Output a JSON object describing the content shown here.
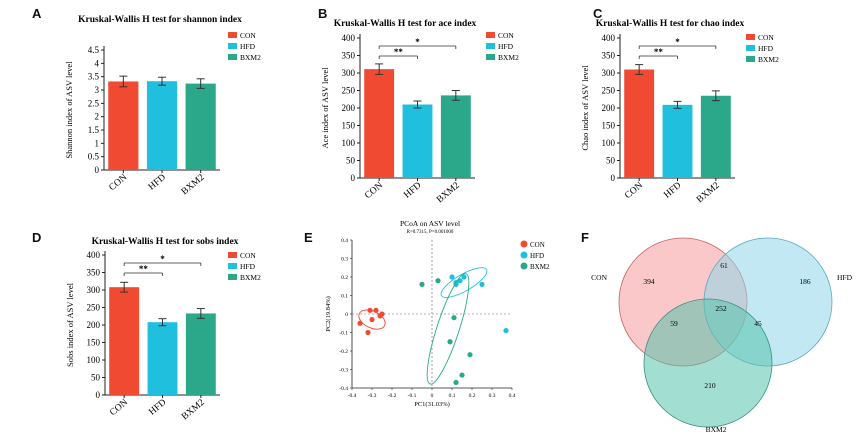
{
  "colors": {
    "CON": "#f04a32",
    "HFD": "#1fbfdd",
    "BXM2": "#2aa889",
    "axis": "#222222"
  },
  "chart_data": [
    {
      "panel_letter": "A",
      "type": "bar",
      "title": "Kruskal-Wallis H test for shannon index",
      "ylabel": "Shannon index of ASV level",
      "categories": [
        "CON",
        "HFD",
        "BXM2"
      ],
      "values": [
        3.32,
        3.33,
        3.24
      ],
      "errors": [
        0.2,
        0.15,
        0.18
      ],
      "ylim": [
        0,
        4.5
      ],
      "yticks": [
        "0",
        "0.5",
        "1",
        "1.5",
        "2",
        "2.5",
        "3",
        "3.5",
        "4",
        "4.5"
      ],
      "legend": [
        "CON",
        "HFD",
        "BXM2"
      ],
      "legend_position": "top-right",
      "significance": []
    },
    {
      "panel_letter": "B",
      "type": "bar",
      "title": "Kruskal-Wallis H test for ace index",
      "ylabel": "Ace index of ASV level",
      "categories": [
        "CON",
        "HFD",
        "BXM2"
      ],
      "values": [
        311,
        210,
        236
      ],
      "errors": [
        15,
        10,
        14
      ],
      "ylim": [
        0,
        400
      ],
      "yticks": [
        "0",
        "50",
        "100",
        "150",
        "200",
        "250",
        "300",
        "350",
        "400"
      ],
      "legend": [
        "CON",
        "HFD",
        "BXM2"
      ],
      "legend_position": "top-right",
      "significance": [
        {
          "from": "CON",
          "to": "HFD",
          "label": "**"
        },
        {
          "from": "CON",
          "to": "BXM2",
          "label": "*"
        }
      ]
    },
    {
      "panel_letter": "C",
      "type": "bar",
      "title": "Kruskal-Wallis H test for chao index",
      "ylabel": "Chao index of ASV level",
      "categories": [
        "CON",
        "HFD",
        "BXM2"
      ],
      "values": [
        310,
        209,
        235
      ],
      "errors": [
        14,
        10,
        14
      ],
      "ylim": [
        0,
        400
      ],
      "yticks": [
        "0",
        "50",
        "100",
        "150",
        "200",
        "250",
        "300",
        "350",
        "400"
      ],
      "legend": [
        "CON",
        "HFD",
        "BXM2"
      ],
      "legend_position": "top-right",
      "significance": [
        {
          "from": "CON",
          "to": "HFD",
          "label": "**"
        },
        {
          "from": "CON",
          "to": "BXM2",
          "label": "*"
        }
      ]
    },
    {
      "panel_letter": "D",
      "type": "bar",
      "title": "Kruskal-Wallis H test for sobs index",
      "ylabel": "Sobs index of ASV level",
      "categories": [
        "CON",
        "HFD",
        "BXM2"
      ],
      "values": [
        308,
        208,
        233
      ],
      "errors": [
        14,
        10,
        14
      ],
      "ylim": [
        0,
        400
      ],
      "yticks": [
        "0",
        "50",
        "100",
        "150",
        "200",
        "250",
        "300",
        "350",
        "400"
      ],
      "legend": [
        "CON",
        "HFD",
        "BXM2"
      ],
      "legend_position": "top-right",
      "significance": [
        {
          "from": "CON",
          "to": "HFD",
          "label": "**"
        },
        {
          "from": "CON",
          "to": "BXM2",
          "label": "*"
        }
      ]
    },
    {
      "panel_letter": "E",
      "type": "scatter",
      "title": "PCoA on ASV level",
      "subtitle": "R=0.7315, P=0.001000",
      "xlabel": "PC1(31.03%)",
      "ylabel": "PC2(19.84%)",
      "xlim": [
        -0.4,
        0.4
      ],
      "ylim": [
        -0.4,
        0.4
      ],
      "xticks": [
        "-0.4",
        "-0.3",
        "-0.2",
        "-0.1",
        "0",
        "0.1",
        "0.2",
        "0.3",
        "0.4"
      ],
      "yticks": [
        "-0.4",
        "-0.3",
        "-0.2",
        "-0.1",
        "0",
        "0.1",
        "0.2",
        "0.3",
        "0.4"
      ],
      "legend_position": "top-right",
      "series": [
        {
          "name": "CON",
          "points": [
            [
              -0.31,
              0.02
            ],
            [
              -0.28,
              0.02
            ],
            [
              -0.26,
              -0.01
            ],
            [
              -0.25,
              0.0
            ],
            [
              -0.3,
              -0.03
            ],
            [
              -0.36,
              -0.05
            ],
            [
              -0.32,
              -0.1
            ]
          ],
          "ellipse": {
            "cx": -0.3,
            "cy": -0.03,
            "rx": 0.07,
            "ry": 0.045,
            "angle": 25
          }
        },
        {
          "name": "HFD",
          "points": [
            [
              0.12,
              0.17
            ],
            [
              0.16,
              0.2
            ],
            [
              0.12,
              0.16
            ],
            [
              0.14,
              0.18
            ],
            [
              0.25,
              0.16
            ],
            [
              0.1,
              0.2
            ],
            [
              0.37,
              -0.09
            ]
          ],
          "ellipse": {
            "cx": 0.16,
            "cy": 0.17,
            "rx": 0.13,
            "ry": 0.045,
            "angle": -30
          }
        },
        {
          "name": "BXM2",
          "points": [
            [
              -0.05,
              0.16
            ],
            [
              0.03,
              0.18
            ],
            [
              0.11,
              -0.02
            ],
            [
              0.09,
              -0.15
            ],
            [
              0.19,
              -0.22
            ],
            [
              0.15,
              -0.33
            ],
            [
              0.12,
              -0.37
            ]
          ],
          "ellipse": {
            "cx": 0.08,
            "cy": -0.08,
            "rx": 0.29,
            "ry": 0.06,
            "angle": -72
          }
        }
      ]
    },
    {
      "panel_letter": "F",
      "type": "venn",
      "sets": [
        "CON",
        "HFD",
        "BXM2"
      ],
      "regions": {
        "CON_only": 394,
        "HFD_only": 186,
        "BXM2_only": 210,
        "CON_HFD": 61,
        "CON_BXM2": 59,
        "HFD_BXM2": 45,
        "all": 252
      }
    }
  ]
}
